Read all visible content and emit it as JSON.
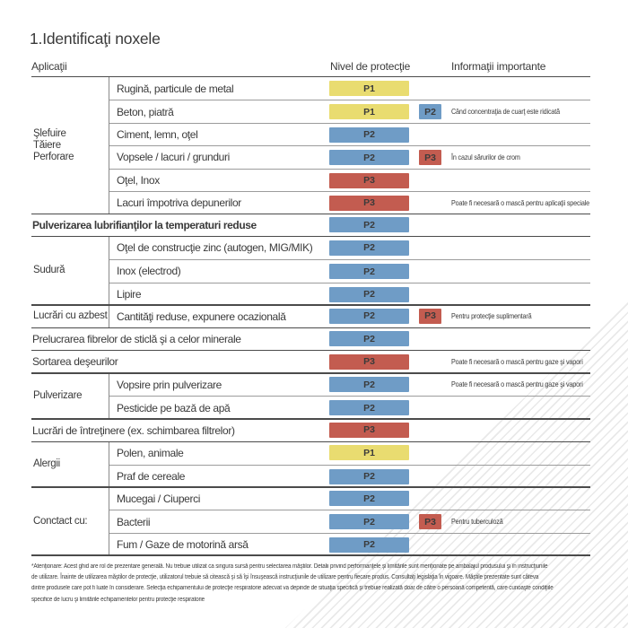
{
  "page": {
    "title": "1.Identificaţi noxele"
  },
  "table": {
    "headers": {
      "applications": "Aplicaţii",
      "protection_level": "Nivel de protecţie",
      "important_info": "Informaţii importante"
    },
    "protection_colors": {
      "P1": "#e9dc70",
      "P2": "#6f9cc6",
      "P3": "#c35c50"
    },
    "sections": [
      {
        "type": "group",
        "label_lines": [
          "Şlefuire",
          "Tăiere",
          "Perforare"
        ],
        "items": [
          {
            "label": "Rugină, particule de metal",
            "badge": "P1",
            "badge2": "",
            "info": ""
          },
          {
            "label": "Beton, piatră",
            "badge": "P1",
            "badge2": "P2",
            "info": "Când concentraţia de cuarţ este ridicată"
          },
          {
            "label": "Ciment, lemn, oţel",
            "badge": "P2",
            "badge2": "",
            "info": ""
          },
          {
            "label": "Vopsele / lacuri / grunduri",
            "badge": "P2",
            "badge2": "P3",
            "info": "În cazul sărurilor de crom"
          },
          {
            "label": "Oţel, Inox",
            "badge": "P3",
            "badge2": "",
            "info": ""
          },
          {
            "label": "Lacuri împotriva depunerilor",
            "badge": "P3",
            "badge2": "",
            "info": "Poate fi necesară o mască pentru aplicaţii speciale"
          }
        ]
      },
      {
        "type": "single",
        "bold": true,
        "items": [
          {
            "label": "Pulverizarea lubrifianţilor la temperaturi reduse",
            "badge": "P2",
            "badge2": "",
            "info": ""
          }
        ]
      },
      {
        "type": "group",
        "label_lines": [
          "Sudură"
        ],
        "items": [
          {
            "label": "Oţel de construcţie zinc (autogen, MIG/MIK)",
            "badge": "P2",
            "badge2": "",
            "info": ""
          },
          {
            "label": "Inox (electrod)",
            "badge": "P2",
            "badge2": "",
            "info": ""
          },
          {
            "label": "Lipire",
            "badge": "P2",
            "badge2": "",
            "info": ""
          }
        ]
      },
      {
        "type": "group",
        "label_lines": [
          "Lucrări cu azbest"
        ],
        "items": [
          {
            "label": "Cantităţi reduse, expunere ocazională",
            "badge": "P2",
            "badge2": "P3",
            "info": "Pentru protecţie suplimentară"
          }
        ]
      },
      {
        "type": "single",
        "bold": false,
        "items": [
          {
            "label": "Prelucrarea fibrelor de sticlă şi a celor minerale",
            "badge": "P2",
            "badge2": "",
            "info": ""
          }
        ]
      },
      {
        "type": "single",
        "bold": false,
        "items": [
          {
            "label": "Sortarea deşeurilor",
            "badge": "P3",
            "badge2": "",
            "info": "Poate fi necesară o mască pentru gaze şi vapori"
          }
        ]
      },
      {
        "type": "group",
        "label_lines": [
          "Pulverizare"
        ],
        "items": [
          {
            "label": "Vopsire prin pulverizare",
            "badge": "P2",
            "badge2": "",
            "info": "Poate fi necesară o mască pentru gaze şi vapori"
          },
          {
            "label": "Pesticide pe bază de apă",
            "badge": "P2",
            "badge2": "",
            "info": ""
          }
        ]
      },
      {
        "type": "single",
        "bold": false,
        "items": [
          {
            "label": "Lucrări de întreţinere (ex. schimbarea filtrelor)",
            "badge": "P3",
            "badge2": "",
            "info": ""
          }
        ]
      },
      {
        "type": "group",
        "label_lines": [
          "Alergii"
        ],
        "items": [
          {
            "label": "Polen, animale",
            "badge": "P1",
            "badge2": "",
            "info": ""
          },
          {
            "label": "Praf de cereale",
            "badge": "P2",
            "badge2": "",
            "info": ""
          }
        ]
      },
      {
        "type": "group",
        "label_lines": [
          "Conctact cu:"
        ],
        "items": [
          {
            "label": "Mucegai / Ciuperci",
            "badge": "P2",
            "badge2": "",
            "info": ""
          },
          {
            "label": "Bacterii",
            "badge": "P2",
            "badge2": "P3",
            "info": "Pentru tuberculoză"
          },
          {
            "label": "Fum / Gaze de motorină arsă",
            "badge": "P2",
            "badge2": "",
            "info": ""
          }
        ]
      }
    ]
  },
  "footnote_lines": [
    "*Atenţionare: Acest ghid are rol de prezentare generală. Nu trebuie utilizat ca singura sursă pentru selectarea măştilor. Detalii privind performanţele şi limitările sunt menţionate pe ambalajul produsului şi în instrucţiunile",
    "de utilizare. Înainte de utilizarea măştilor de protecţie, utilizatorul trebuie să citească şi să îşi însuşească instrucţiunile de utilizare pentru fiecare produs. Consultaţi legislaţia în vigoare. Măştile prezentate sunt câteva",
    "dintre produsele care pot fi luate în considerare. Selecţia echipamentului de protecţie respiratorie adecvat va depinde de situaţia specifică şi trebuie realizată doar de către o persoană competentă, care cunoaşte condiţiile",
    "specifice de lucru şi limitările echipamentelor pentru protecţie respiratorie"
  ]
}
